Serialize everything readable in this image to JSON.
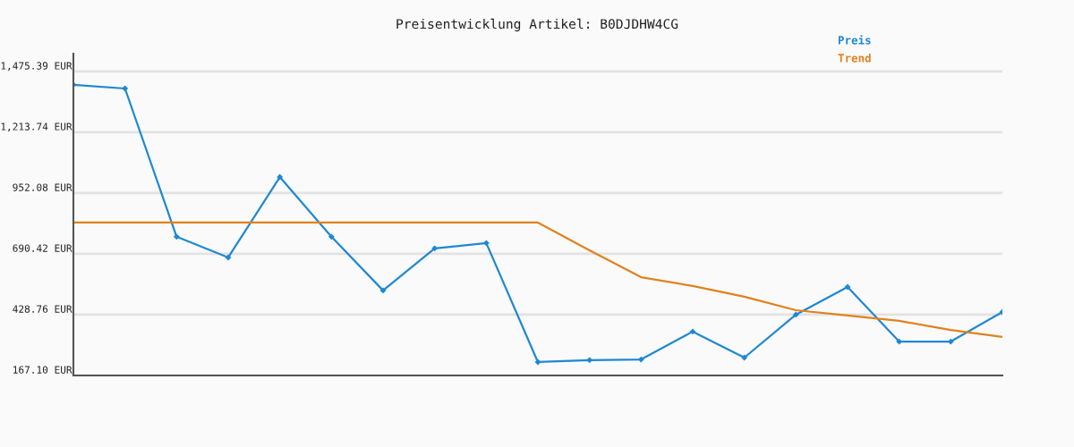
{
  "chart_data": {
    "type": "line",
    "title": "Preisentwicklung Artikel: B0DJDHW4CG",
    "categories": [
      null,
      null,
      null,
      null,
      null,
      null,
      null,
      null,
      null,
      null,
      null,
      null,
      null,
      null,
      null,
      null,
      null,
      null,
      null
    ],
    "series": [
      {
        "name": "Preis",
        "color": "#1f88d2",
        "marker": "diamond",
        "values": [
          1418,
          1402,
          764,
          675,
          1021,
          764,
          533,
          714,
          737,
          225,
          233,
          236,
          356,
          244,
          429,
          548,
          313,
          313,
          440
        ]
      },
      {
        "name": "Trend",
        "color": "#e0821e",
        "marker": "none",
        "values": [
          825,
          825,
          825,
          825,
          825,
          825,
          825,
          825,
          825,
          825,
          706,
          590,
          552,
          506,
          448,
          425,
          402,
          363,
          333
        ]
      }
    ],
    "ylim": [
      167.1,
      1552
    ],
    "yticks": [
      {
        "value": 167.1,
        "label": "167.10 EUR"
      },
      {
        "value": 428.76,
        "label": "428.76 EUR"
      },
      {
        "value": 690.42,
        "label": "690.42 EUR"
      },
      {
        "value": 952.08,
        "label": "952.08 EUR"
      },
      {
        "value": 1213.74,
        "label": "1,213.74 EUR"
      },
      {
        "value": 1475.39,
        "label": "1,475.39 EUR"
      }
    ],
    "tick_labels": "y",
    "grid": "y",
    "legend": "top right",
    "line_style": "solid"
  }
}
